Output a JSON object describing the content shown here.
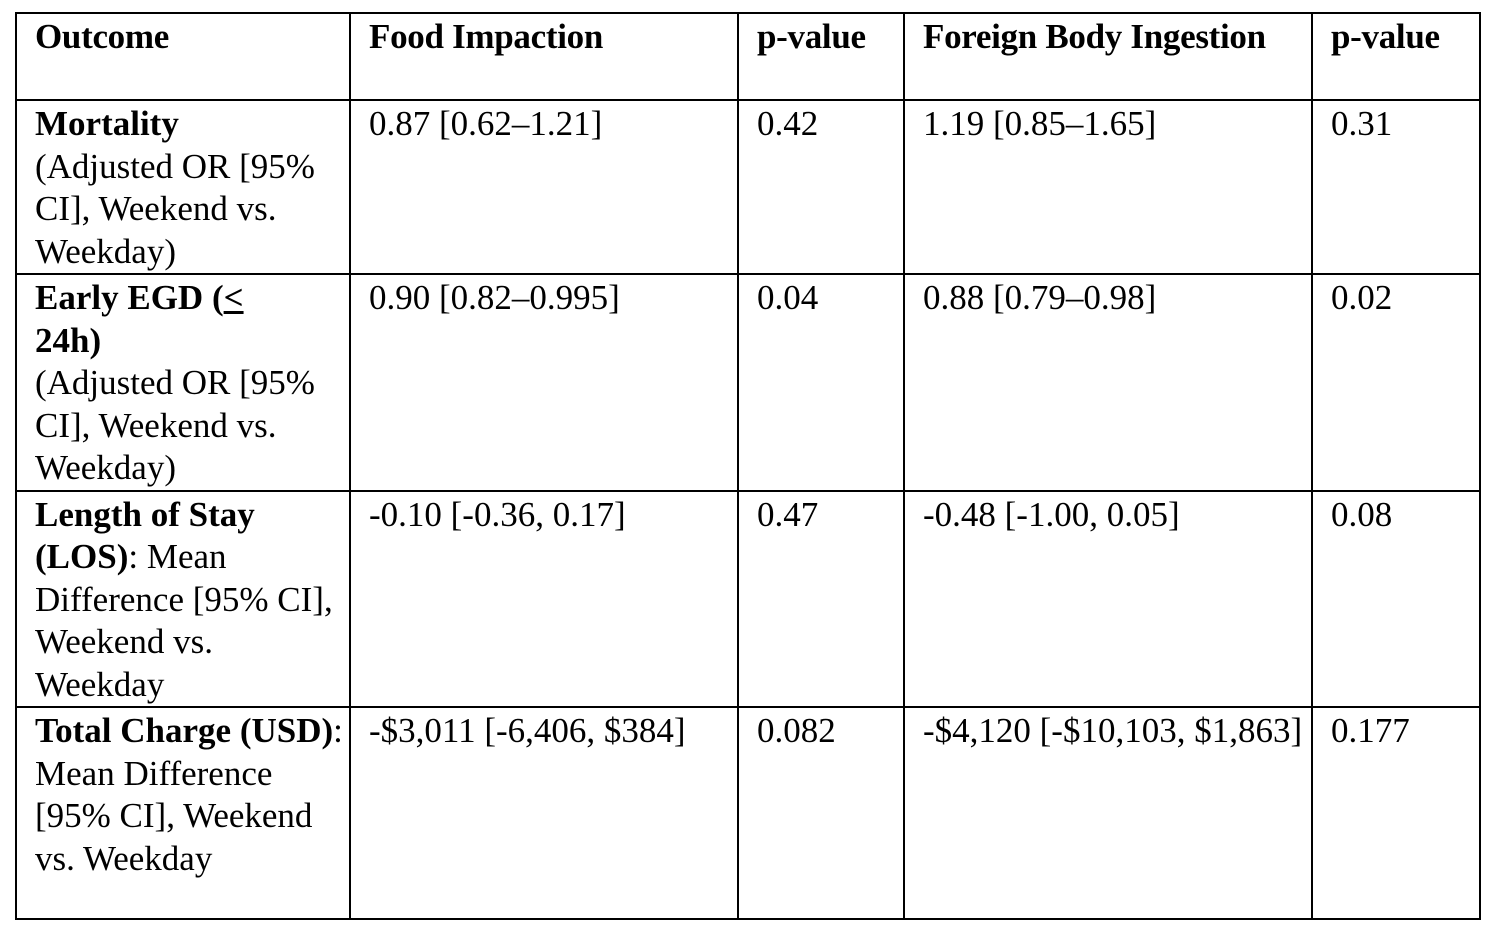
{
  "headers": {
    "outcome": "Outcome",
    "food": "Food Impaction",
    "p1": "p-value",
    "foreign": "Foreign Body Ingestion",
    "p2": "p-value"
  },
  "rows": [
    {
      "label_bold": "Mortality",
      "label_rest": "(Adjusted OR [95% CI], Weekend vs. Weekday)",
      "food": "0.87 [0.62–1.21]",
      "p1": "0.42",
      "foreign": "1.19 [0.85–1.65]",
      "p2": "0.31"
    },
    {
      "label_bold_a": "Early EGD (",
      "label_bold_u": "<",
      "label_bold_b": " 24h)",
      "label_rest": "(Adjusted OR [95% CI], Weekend vs. Weekday)",
      "food": "0.90 [0.82–0.995]",
      "p1": "0.04",
      "foreign": "0.88 [0.79–0.98]",
      "p2": "0.02"
    },
    {
      "label_bold": "Length of Stay (LOS)",
      "label_rest": ": Mean Difference [95% CI], Weekend vs. Weekday",
      "food": "-0.10 [-0.36, 0.17]",
      "p1": "0.47",
      "foreign": "-0.48 [-1.00, 0.05]",
      "p2": "0.08"
    },
    {
      "label_bold": "Total Charge (USD)",
      "label_rest": ": Mean Difference [95% CI], Weekend vs. Weekday",
      "food": "-$3,011 [-6,406, $384]",
      "p1": "0.082",
      "foreign": "-$4,120 [-$10,103, $1,863]",
      "p2": "0.177"
    }
  ]
}
